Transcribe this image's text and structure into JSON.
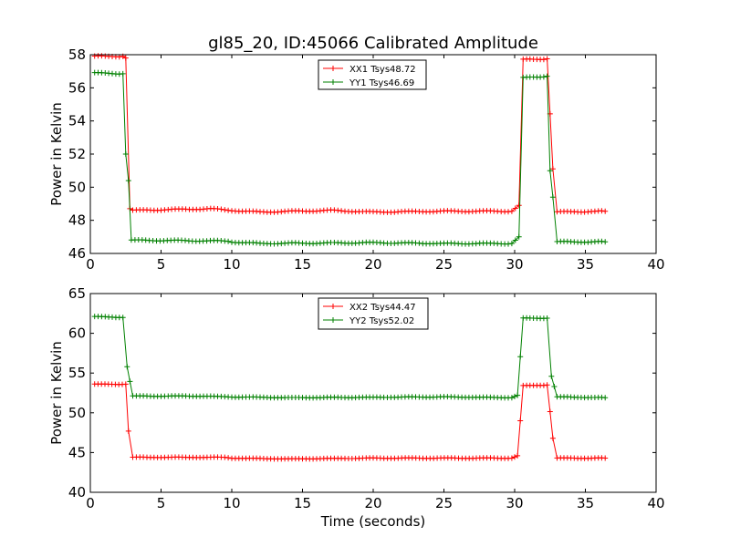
{
  "title": "gl85_20, ID:45066 Calibrated Amplitude",
  "xlabel": "Time (seconds)",
  "chart_data": [
    {
      "type": "line",
      "ylabel": "Power in Kelvin",
      "xlim": [
        0,
        40
      ],
      "ylim": [
        46,
        58
      ],
      "xticks": [
        "0",
        "5",
        "10",
        "15",
        "20",
        "25",
        "30",
        "35",
        "40"
      ],
      "yticks": [
        "46",
        "48",
        "50",
        "52",
        "54",
        "56",
        "58"
      ],
      "legend_position": "top-center",
      "series": [
        {
          "name": "XX1 Tsys48.72",
          "color": "#ff0000",
          "levels": {
            "high": 57.85,
            "low": 48.6
          },
          "points": [
            [
              0.3,
              57.9
            ],
            [
              2.3,
              57.9
            ],
            [
              2.5,
              57.8
            ],
            [
              2.8,
              48.7
            ],
            [
              3.0,
              48.6
            ],
            [
              8.5,
              48.7
            ],
            [
              10.0,
              48.6
            ],
            [
              12.0,
              48.5
            ],
            [
              17.0,
              48.6
            ],
            [
              20.0,
              48.5
            ],
            [
              25.0,
              48.55
            ],
            [
              29.8,
              48.55
            ],
            [
              30.3,
              48.9
            ],
            [
              30.6,
              57.7
            ],
            [
              32.3,
              57.75
            ],
            [
              32.7,
              51.1
            ],
            [
              33.0,
              48.5
            ],
            [
              36.4,
              48.55
            ]
          ]
        },
        {
          "name": "YY1 Tsys46.69",
          "color": "#008000",
          "levels": {
            "high": 56.85,
            "low": 46.7
          },
          "points": [
            [
              0.3,
              56.9
            ],
            [
              2.3,
              56.85
            ],
            [
              2.5,
              52.0
            ],
            [
              2.7,
              50.4
            ],
            [
              2.9,
              46.8
            ],
            [
              9.5,
              46.75
            ],
            [
              10.0,
              46.7
            ],
            [
              12.0,
              46.6
            ],
            [
              20.0,
              46.65
            ],
            [
              25.0,
              46.6
            ],
            [
              29.8,
              46.6
            ],
            [
              30.3,
              47.0
            ],
            [
              30.6,
              56.6
            ],
            [
              32.3,
              56.7
            ],
            [
              32.5,
              51.0
            ],
            [
              32.7,
              49.4
            ],
            [
              33.0,
              46.7
            ],
            [
              36.4,
              46.7
            ]
          ]
        }
      ]
    },
    {
      "type": "line",
      "ylabel": "Power in Kelvin",
      "xlim": [
        0,
        40
      ],
      "ylim": [
        40,
        65
      ],
      "xticks": [
        "0",
        "5",
        "10",
        "15",
        "20",
        "25",
        "30",
        "35",
        "40"
      ],
      "yticks": [
        "40",
        "45",
        "50",
        "55",
        "60",
        "65"
      ],
      "legend_position": "top-center",
      "series": [
        {
          "name": "XX2 Tsys44.47",
          "color": "#ff0000",
          "levels": {
            "high": 53.6,
            "low": 44.4
          },
          "points": [
            [
              0.3,
              53.6
            ],
            [
              2.5,
              53.6
            ],
            [
              2.7,
              47.7
            ],
            [
              3.0,
              44.4
            ],
            [
              9.5,
              44.4
            ],
            [
              10.0,
              44.3
            ],
            [
              14.0,
              44.2
            ],
            [
              20.0,
              44.3
            ],
            [
              29.8,
              44.3
            ],
            [
              30.2,
              44.6
            ],
            [
              30.6,
              53.4
            ],
            [
              32.3,
              53.5
            ],
            [
              32.7,
              46.8
            ],
            [
              33.0,
              44.3
            ],
            [
              36.4,
              44.3
            ]
          ]
        },
        {
          "name": "YY2 Tsys52.02",
          "color": "#008000",
          "levels": {
            "high": 62.1,
            "low": 52.0
          },
          "points": [
            [
              0.3,
              62.1
            ],
            [
              2.3,
              62.0
            ],
            [
              2.6,
              55.8
            ],
            [
              3.0,
              52.1
            ],
            [
              8.0,
              52.1
            ],
            [
              10.0,
              52.0
            ],
            [
              14.0,
              51.9
            ],
            [
              20.0,
              51.95
            ],
            [
              25.0,
              52.0
            ],
            [
              29.8,
              51.9
            ],
            [
              30.2,
              52.2
            ],
            [
              30.6,
              61.9
            ],
            [
              32.3,
              61.9
            ],
            [
              32.6,
              54.6
            ],
            [
              33.0,
              52.0
            ],
            [
              36.4,
              51.9
            ]
          ]
        }
      ]
    }
  ]
}
